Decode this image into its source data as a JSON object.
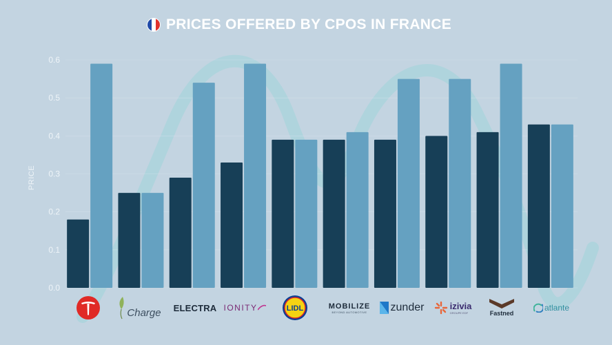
{
  "header": {
    "title": "PRICES OFFERED BY CPOS IN FRANCE",
    "flag_colors": [
      "#1f4aa8",
      "#ffffff",
      "#e0322e"
    ]
  },
  "colors": {
    "background": "#c3d4e1",
    "series_dark": "#173f57",
    "series_light": "#65a1c1",
    "decor_wave": "#9fd3da",
    "gridline": "#d9e5ee",
    "tick_text": "#eef4f8"
  },
  "chart_data": {
    "type": "bar",
    "title": "PRICES OFFERED BY CPOS IN FRANCE",
    "ylabel": "PRICE",
    "xlabel": "",
    "ylim": [
      0,
      0.6
    ],
    "yticks": [
      "0.0",
      "0.1",
      "0.2",
      "0.3",
      "0.4",
      "0.5",
      "0.6"
    ],
    "categories": [
      "Tesla",
      "Charge",
      "ELECTRA",
      "IONITY",
      "LIDL",
      "MOBILIZE",
      "zunder",
      "izivia",
      "Fastned",
      "atlante"
    ],
    "series": [
      {
        "color": "#173f57",
        "values": [
          0.18,
          0.25,
          0.29,
          0.33,
          0.39,
          0.39,
          0.39,
          0.4,
          0.41,
          0.43
        ]
      },
      {
        "color": "#65a1c1",
        "values": [
          0.59,
          0.25,
          0.54,
          0.59,
          0.39,
          0.41,
          0.55,
          0.55,
          0.59,
          0.43
        ]
      }
    ],
    "grid": true,
    "legend": "none"
  },
  "logos": {
    "charge": "Charge",
    "electra": "ELECTRA",
    "ionity": "IONITY",
    "lidl": "LIDL",
    "mobilize": "MOBILIZE",
    "mobilize_sub": "BEYOND AUTOMOTIVE",
    "zunder": "zunder",
    "izivia": "izivia",
    "izivia_sub": "GROUPE EDF",
    "fastned": "Fastned",
    "atlante": "atlante"
  }
}
